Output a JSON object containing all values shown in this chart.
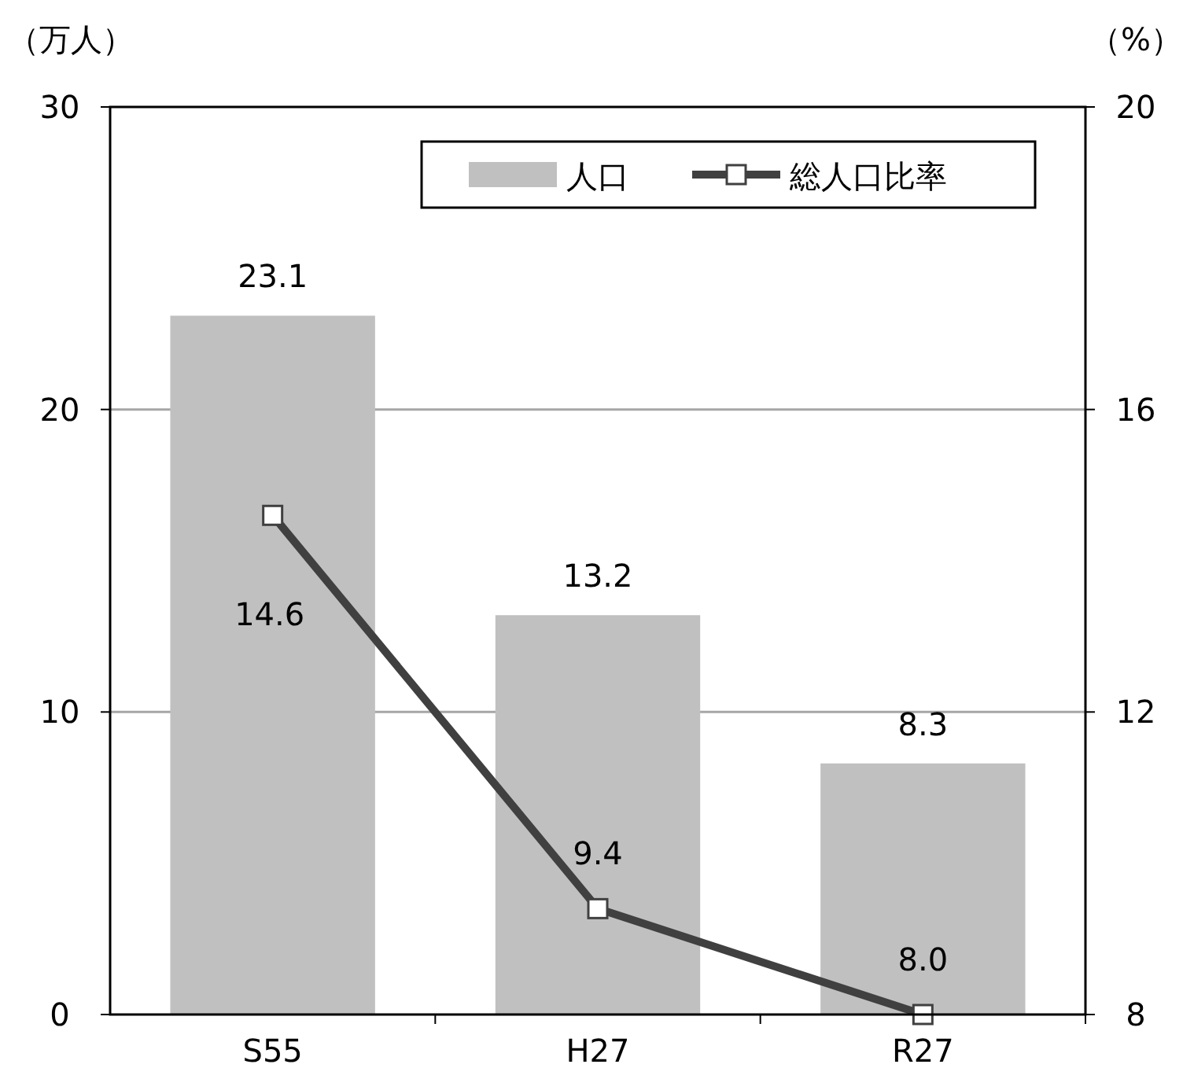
{
  "chart_data": {
    "type": "bar",
    "categories": [
      "S55",
      "H27",
      "R27"
    ],
    "ylabel": "（万人）",
    "y2label": "（%）",
    "series": [
      {
        "name": "人口",
        "color": "#c0c0c0",
        "values": [
          23.1,
          13.2,
          8.3
        ],
        "value_labels": [
          "23.1",
          "13.2",
          "8.3"
        ]
      },
      {
        "name": "総人口比率",
        "type": "line",
        "axis": "y2",
        "color": "#404040",
        "marker": "square",
        "values": [
          14.6,
          9.4,
          8.0
        ],
        "value_labels": [
          "14.6",
          "9.4",
          "8.0"
        ]
      }
    ],
    "ylim": [
      0,
      30
    ],
    "yticks": [
      0,
      10,
      20,
      30
    ],
    "y2lim": [
      8,
      20
    ],
    "y2ticks": [
      8,
      12,
      16,
      20
    ],
    "grid": "y",
    "legend": "top right"
  }
}
